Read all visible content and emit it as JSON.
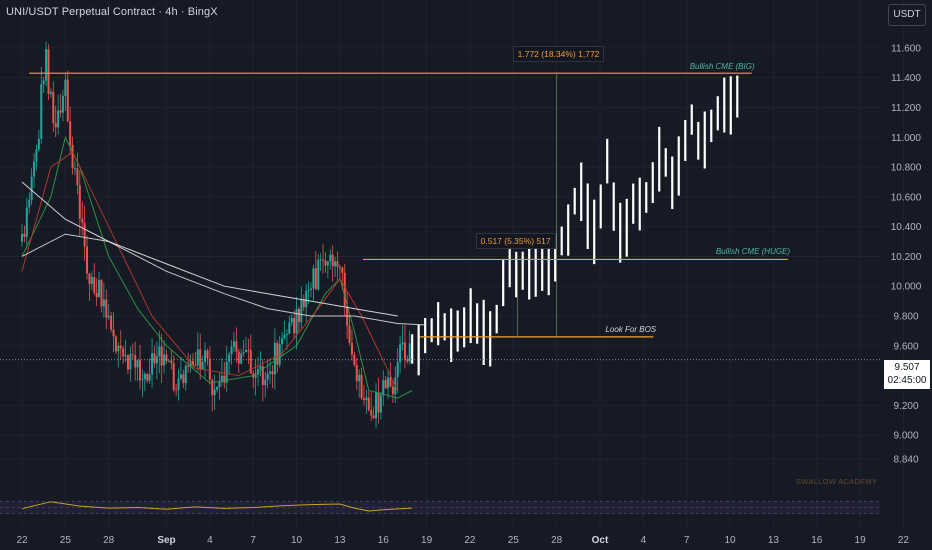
{
  "header": {
    "title": "UNI/USDT Perpetual Contract · 4h · BingX",
    "currency_button": "USDT"
  },
  "price_tag": {
    "price": "9.507",
    "countdown": "02:45:00"
  },
  "watermark": "SWALLOW ACADEMY",
  "colors": {
    "background": "#161a25",
    "up": "#26a69a",
    "down": "#ef5350",
    "projection": "#ffffff",
    "level": "#f0a030",
    "ma_fast": "#2e9d48",
    "ma_mid": "#c0392b",
    "ma_slow": "#d9d9d9",
    "rsi": "#c9a227"
  },
  "chart_data": {
    "type": "candlestick",
    "ylim": [
      8.8,
      11.72
    ],
    "y_ticks": [
      "11.600",
      "11.400",
      "11.200",
      "11.000",
      "10.800",
      "10.600",
      "10.400",
      "10.200",
      "10.000",
      "9.800",
      "9.600",
      "9.200",
      "9.000",
      "8.840"
    ],
    "x_ticks": [
      "22",
      "25",
      "28",
      "Sep",
      "4",
      "7",
      "10",
      "13",
      "16",
      "19",
      "22",
      "25",
      "28",
      "Oct",
      "4",
      "7",
      "10",
      "13",
      "16",
      "19",
      "22"
    ],
    "x_tick_days": [
      0,
      3,
      6,
      10,
      13,
      16,
      19,
      22,
      25,
      28,
      31,
      34,
      37,
      40,
      43,
      46,
      49,
      52,
      55,
      58,
      61
    ],
    "last_price": 9.507,
    "levels": [
      {
        "name": "Bullish CME (BIG)",
        "price": 11.43,
        "from_day": 0.5,
        "to_day": 50.5
      },
      {
        "name": "Bullish CME (HUGE)",
        "price": 10.18,
        "from_day": 23.6,
        "to_day": 53
      },
      {
        "name": "Look For BOS",
        "price": 9.66,
        "from_day": 27.5,
        "to_day": 43.7
      }
    ],
    "measures": [
      {
        "label": "1.772 (18.34%) 1,772",
        "day": 37,
        "from": 9.66,
        "to": 11.43
      },
      {
        "label": "0.517 (5.35%) 517",
        "day": 34.3,
        "from": 9.66,
        "to": 10.18
      }
    ],
    "historical_keypoints": [
      [
        0,
        10.3
      ],
      [
        1.0,
        10.9
      ],
      [
        1.6,
        11.55
      ],
      [
        2.3,
        11.0
      ],
      [
        3.0,
        11.3
      ],
      [
        3.8,
        10.6
      ],
      [
        4.6,
        10.1
      ],
      [
        5.4,
        9.95
      ],
      [
        6.2,
        9.7
      ],
      [
        7.2,
        9.5
      ],
      [
        8.3,
        9.4
      ],
      [
        9.5,
        9.55
      ],
      [
        10.6,
        9.35
      ],
      [
        11.6,
        9.4
      ],
      [
        12.4,
        9.55
      ],
      [
        13.4,
        9.3
      ],
      [
        14.3,
        9.5
      ],
      [
        15.2,
        9.6
      ],
      [
        16.2,
        9.35
      ],
      [
        17.4,
        9.5
      ],
      [
        18.4,
        9.7
      ],
      [
        19.4,
        9.85
      ],
      [
        20.3,
        10.05
      ],
      [
        21.3,
        10.25
      ],
      [
        22.0,
        10.15
      ],
      [
        22.6,
        9.7
      ],
      [
        23.4,
        9.3
      ],
      [
        24.2,
        9.1
      ],
      [
        24.9,
        9.3
      ],
      [
        25.6,
        9.35
      ],
      [
        26.3,
        9.55
      ],
      [
        26.9,
        9.55
      ]
    ],
    "projection_keypoints": [
      [
        27.0,
        9.55
      ],
      [
        28.6,
        9.72
      ],
      [
        30.0,
        9.7
      ],
      [
        31.4,
        9.8
      ],
      [
        32.6,
        9.6
      ],
      [
        33.6,
        10.15
      ],
      [
        34.4,
        10.05
      ],
      [
        35.6,
        10.15
      ],
      [
        36.5,
        10.15
      ],
      [
        37.6,
        10.35
      ],
      [
        38.6,
        10.7
      ],
      [
        39.5,
        10.3
      ],
      [
        40.5,
        10.8
      ],
      [
        41.3,
        10.3
      ],
      [
        42.2,
        10.5
      ],
      [
        43.2,
        10.6
      ],
      [
        44.2,
        10.9
      ],
      [
        45.2,
        10.7
      ],
      [
        46.3,
        11.1
      ],
      [
        47.2,
        10.95
      ],
      [
        48.0,
        11.2
      ],
      [
        49.0,
        11.2
      ],
      [
        49.7,
        11.3
      ]
    ],
    "moving_averages": {
      "fast": [
        [
          0,
          10.2
        ],
        [
          2,
          10.6
        ],
        [
          3,
          11.0
        ],
        [
          4,
          10.8
        ],
        [
          6,
          10.2
        ],
        [
          8,
          9.85
        ],
        [
          10,
          9.6
        ],
        [
          13,
          9.35
        ],
        [
          16,
          9.4
        ],
        [
          19,
          9.6
        ],
        [
          21,
          9.95
        ],
        [
          22,
          10.05
        ],
        [
          23,
          9.7
        ],
        [
          24,
          9.3
        ],
        [
          26,
          9.25
        ],
        [
          27,
          9.3
        ]
      ],
      "mid": [
        [
          0,
          10.1
        ],
        [
          2,
          10.8
        ],
        [
          3.5,
          10.9
        ],
        [
          5,
          10.6
        ],
        [
          7,
          10.2
        ],
        [
          9,
          9.8
        ],
        [
          12,
          9.45
        ],
        [
          15,
          9.4
        ],
        [
          18,
          9.55
        ],
        [
          20.5,
          9.85
        ],
        [
          22,
          10.05
        ],
        [
          23.5,
          9.8
        ],
        [
          25,
          9.5
        ],
        [
          26,
          9.3
        ]
      ],
      "slow": [
        [
          0,
          10.2
        ],
        [
          3,
          10.35
        ],
        [
          6,
          10.3
        ],
        [
          10,
          10.1
        ],
        [
          14,
          9.95
        ],
        [
          17,
          9.85
        ],
        [
          20,
          9.8
        ],
        [
          23,
          9.8
        ],
        [
          26,
          9.75
        ],
        [
          28,
          9.74
        ]
      ],
      "slower": [
        [
          0,
          10.7
        ],
        [
          3,
          10.45
        ],
        [
          6,
          10.3
        ],
        [
          10,
          10.15
        ],
        [
          14,
          10.0
        ],
        [
          17,
          9.95
        ],
        [
          20,
          9.9
        ],
        [
          23,
          9.85
        ],
        [
          26,
          9.8
        ]
      ]
    },
    "rsi": [
      [
        0,
        46
      ],
      [
        2,
        70
      ],
      [
        4,
        55
      ],
      [
        6,
        48
      ],
      [
        8,
        50
      ],
      [
        10,
        44
      ],
      [
        12,
        52
      ],
      [
        14,
        47
      ],
      [
        16,
        50
      ],
      [
        18,
        56
      ],
      [
        20,
        60
      ],
      [
        22,
        62
      ],
      [
        23,
        48
      ],
      [
        24,
        38
      ],
      [
        25,
        42
      ],
      [
        26,
        45
      ],
      [
        27,
        48
      ]
    ]
  }
}
